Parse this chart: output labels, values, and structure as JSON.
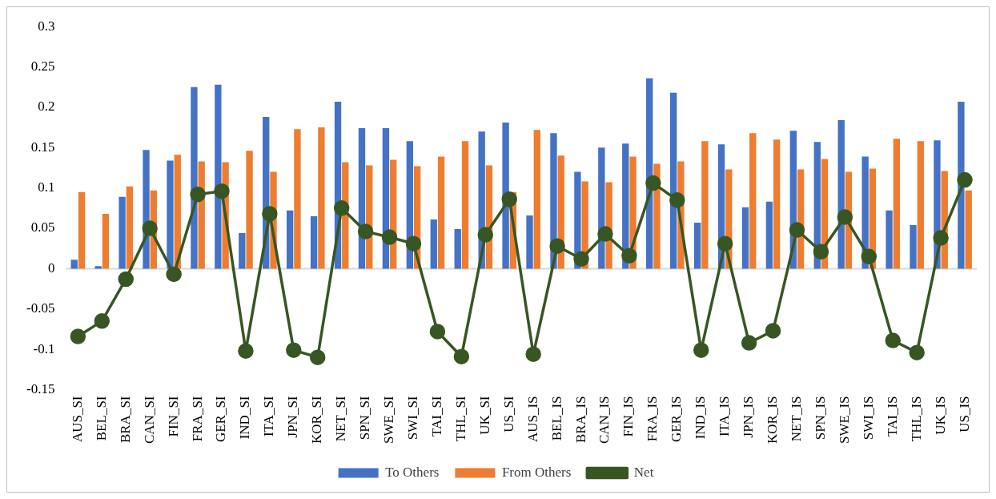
{
  "chart_data": {
    "type": "bar",
    "categories": [
      "AUS_SI",
      "BEL_SI",
      "BRA_SI",
      "CAN_SI",
      "FIN_SI",
      "FRA_SI",
      "GER_SI",
      "IND_SI",
      "ITA_SI",
      "JPN_SI",
      "KOR_SI",
      "NET_SI",
      "SPN_SI",
      "SWE_SI",
      "SWI_SI",
      "TAI_SI",
      "THL_SI",
      "UK_SI",
      "US_SI",
      "AUS_IS",
      "BEL_IS",
      "BRA_IS",
      "CAN_IS",
      "FIN_IS",
      "FRA_IS",
      "GER_IS",
      "IND_IS",
      "ITA_IS",
      "JPN_IS",
      "KOR_IS",
      "NET_IS",
      "SPN_IS",
      "SWE_IS",
      "SWI_IS",
      "TAI_IS",
      "THL_IS",
      "UK_IS",
      "US_IS"
    ],
    "series": [
      {
        "name": "To Others",
        "color": "#4472c4",
        "values": [
          0.011,
          0.003,
          0.089,
          0.147,
          0.134,
          0.225,
          0.228,
          0.044,
          0.188,
          0.072,
          0.065,
          0.207,
          0.174,
          0.174,
          0.158,
          0.061,
          0.049,
          0.17,
          0.181,
          0.066,
          0.168,
          0.12,
          0.15,
          0.155,
          0.236,
          0.218,
          0.057,
          0.154,
          0.076,
          0.083,
          0.171,
          0.157,
          0.184,
          0.139,
          0.072,
          0.054,
          0.159,
          0.207
        ]
      },
      {
        "name": "From Others",
        "color": "#ed7d31",
        "values": [
          0.095,
          0.068,
          0.102,
          0.097,
          0.141,
          0.133,
          0.132,
          0.146,
          0.12,
          0.173,
          0.175,
          0.132,
          0.128,
          0.135,
          0.127,
          0.139,
          0.158,
          0.128,
          0.095,
          0.172,
          0.14,
          0.108,
          0.107,
          0.139,
          0.13,
          0.133,
          0.158,
          0.123,
          0.168,
          0.16,
          0.123,
          0.136,
          0.12,
          0.124,
          0.161,
          0.158,
          0.121,
          0.097
        ]
      },
      {
        "name": "Net",
        "type": "line",
        "color": "#375623",
        "values": [
          -0.084,
          -0.065,
          -0.013,
          0.05,
          -0.007,
          0.092,
          0.096,
          -0.102,
          0.068,
          -0.101,
          -0.11,
          0.075,
          0.046,
          0.039,
          0.031,
          -0.078,
          -0.109,
          0.042,
          0.086,
          -0.106,
          0.028,
          0.012,
          0.043,
          0.016,
          0.106,
          0.085,
          -0.101,
          0.031,
          -0.092,
          -0.077,
          0.048,
          0.021,
          0.064,
          0.015,
          -0.089,
          -0.104,
          0.038,
          0.11
        ]
      }
    ],
    "ylim": [
      -0.15,
      0.3
    ],
    "yticks": [
      -0.15,
      -0.1,
      -0.05,
      0,
      0.05,
      0.1,
      0.15,
      0.2,
      0.25,
      0.3
    ],
    "ref_lines": [
      {
        "axis": "y",
        "value": 0,
        "color": "#d9d9d9"
      }
    ],
    "grid": false,
    "legend": "bottom",
    "marker": "circle",
    "line_style": "solid"
  }
}
